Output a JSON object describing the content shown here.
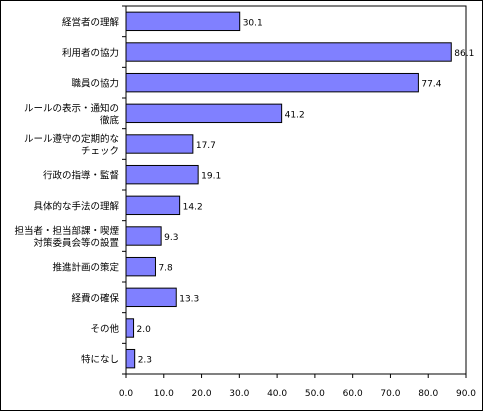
{
  "chart_data": {
    "type": "bar",
    "orientation": "horizontal",
    "categories": [
      [
        "経営者の理解"
      ],
      [
        "利用者の協力"
      ],
      [
        "職員の協力"
      ],
      [
        "ルールの表示・通知の",
        "徹底"
      ],
      [
        "ルール遵守の定期的な",
        "チェック"
      ],
      [
        "行政の指導・監督"
      ],
      [
        "具体的な手法の理解"
      ],
      [
        "担当者・担当部課・喫煙",
        "対策委員会等の設置"
      ],
      [
        "推進計画の策定"
      ],
      [
        "経費の確保"
      ],
      [
        "その他"
      ],
      [
        "特になし"
      ]
    ],
    "values": [
      30.1,
      86.1,
      77.4,
      41.2,
      17.7,
      19.1,
      14.2,
      9.3,
      7.8,
      13.3,
      2.0,
      2.3
    ],
    "value_labels": [
      "30.1",
      "86.1",
      "77.4",
      "41.2",
      "17.7",
      "19.1",
      "14.2",
      "9.3",
      "7.8",
      "13.3",
      "2.0",
      "2.3"
    ],
    "xlim": [
      0,
      90
    ],
    "xticks": [
      "0.0",
      "10.0",
      "20.0",
      "30.0",
      "40.0",
      "50.0",
      "60.0",
      "70.0",
      "80.0",
      "90.0"
    ],
    "bar_color": "#8080ff",
    "bar_edge_color": "#000000",
    "grid": false,
    "title": "",
    "xlabel": "",
    "ylabel": ""
  }
}
